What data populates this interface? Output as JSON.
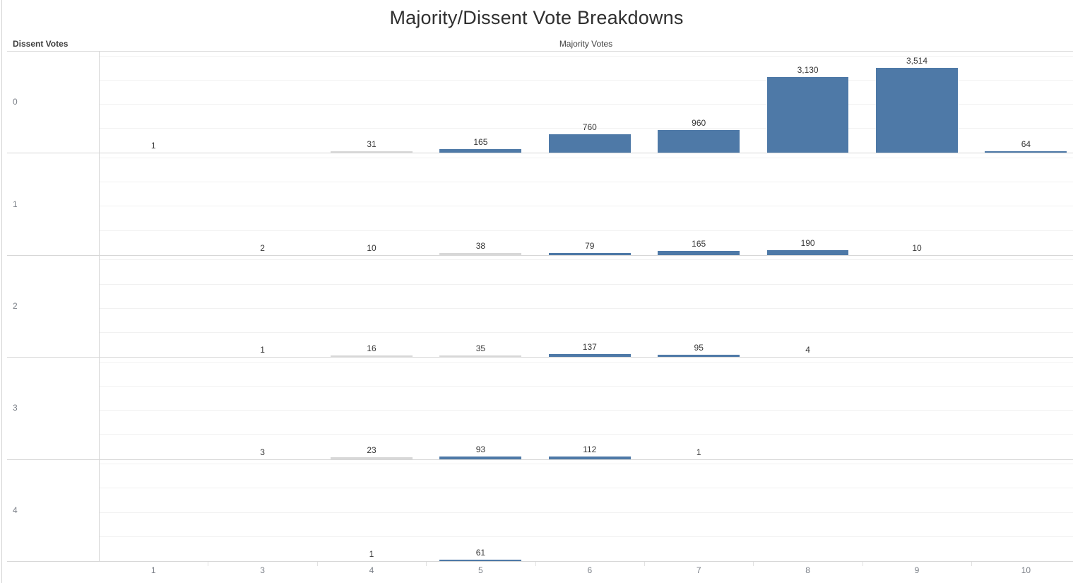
{
  "title": "Majority/Dissent Vote Breakdowns",
  "axes": {
    "row_label": "Dissent Votes",
    "col_label": "Majority Votes"
  },
  "colors": {
    "bar": "#4e79a7",
    "tiny_bar": "#d8d8d8",
    "grid_line": "#f1f1f1",
    "pane_border": "#d7d7d7",
    "tick_label": "#7b8088",
    "data_label": "#373737"
  },
  "chart_data": {
    "type": "bar",
    "layout": "small_multiples",
    "title": "Majority/Dissent Vote Breakdowns",
    "xlabel": "Majority Votes",
    "row_label": "Dissent Votes",
    "categories": [
      "1",
      "3",
      "4",
      "5",
      "6",
      "7",
      "8",
      "9",
      "10"
    ],
    "row_categories": [
      "0",
      "1",
      "2",
      "3",
      "4"
    ],
    "cell_axis": {
      "min": 0,
      "max": 4228,
      "gridline_values": [
        1000,
        2000,
        3000,
        4000
      ],
      "grid": true
    },
    "legend": "none",
    "rows": [
      {
        "dissent_votes": "0",
        "values": [
          1,
          null,
          31,
          165,
          760,
          960,
          3130,
          3514,
          64
        ],
        "labels": [
          "1",
          "",
          "31",
          "165",
          "760",
          "960",
          "3,130",
          "3,514",
          "64"
        ]
      },
      {
        "dissent_votes": "1",
        "values": [
          null,
          2,
          10,
          38,
          79,
          165,
          190,
          10,
          null
        ],
        "labels": [
          "",
          "2",
          "10",
          "38",
          "79",
          "165",
          "190",
          "10",
          ""
        ]
      },
      {
        "dissent_votes": "2",
        "values": [
          null,
          1,
          16,
          35,
          137,
          95,
          4,
          null,
          null
        ],
        "labels": [
          "",
          "1",
          "16",
          "35",
          "137",
          "95",
          "4",
          "",
          ""
        ]
      },
      {
        "dissent_votes": "3",
        "values": [
          null,
          3,
          23,
          93,
          112,
          1,
          null,
          null,
          null
        ],
        "labels": [
          "",
          "3",
          "23",
          "93",
          "112",
          "1",
          "",
          "",
          ""
        ]
      },
      {
        "dissent_votes": "4",
        "values": [
          null,
          null,
          1,
          61,
          null,
          null,
          null,
          null,
          null
        ],
        "labels": [
          "",
          "",
          "1",
          "61",
          "",
          "",
          "",
          "",
          ""
        ]
      }
    ]
  }
}
